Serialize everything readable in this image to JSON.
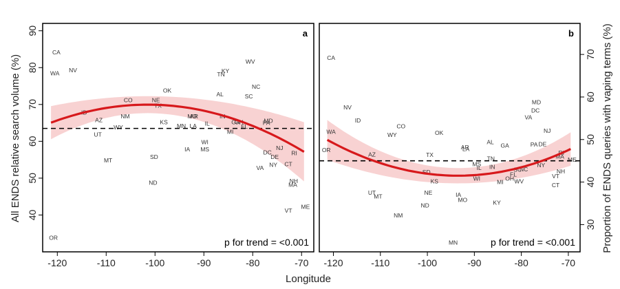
{
  "chart_data": [
    {
      "type": "scatter",
      "panel": "a",
      "xlabel": "Longitude",
      "ylabel": "All ENDS relative search volume (%)",
      "xlim": [
        -123,
        -67.5
      ],
      "ylim": [
        30,
        92
      ],
      "xticks": [
        -120,
        -110,
        -100,
        -90,
        -80,
        -70
      ],
      "yticks": [
        40,
        50,
        60,
        70,
        80,
        90
      ],
      "y_axis_side": "left",
      "reference_y": 63.5,
      "trend_text": "p for trend = <0.001",
      "fit": {
        "a": 69.95,
        "b": -0.0125,
        "x0": -101.5
      },
      "ci": {
        "base": 2.3,
        "k": 0.0056
      },
      "points": [
        {
          "label": "CA",
          "x": -120.2,
          "y": 84.2
        },
        {
          "label": "WA",
          "x": -120.5,
          "y": 78.5
        },
        {
          "label": "NV",
          "x": -116.8,
          "y": 79.3
        },
        {
          "label": "ID",
          "x": -114.5,
          "y": 67.8
        },
        {
          "label": "OR",
          "x": -120.8,
          "y": 33.8
        },
        {
          "label": "AZ",
          "x": -111.5,
          "y": 65.8
        },
        {
          "label": "UT",
          "x": -111.7,
          "y": 61.8
        },
        {
          "label": "MT",
          "x": -109.6,
          "y": 54.8
        },
        {
          "label": "CO",
          "x": -105.5,
          "y": 71.2
        },
        {
          "label": "NM",
          "x": -106.1,
          "y": 66.8
        },
        {
          "label": "WY",
          "x": -107.5,
          "y": 63.8
        },
        {
          "label": "NE",
          "x": -99.8,
          "y": 71.2
        },
        {
          "label": "TX",
          "x": -99.4,
          "y": 69.7
        },
        {
          "label": "OK",
          "x": -97.5,
          "y": 73.8
        },
        {
          "label": "KS",
          "x": -98.2,
          "y": 65.2
        },
        {
          "label": "SD",
          "x": -100.2,
          "y": 55.8
        },
        {
          "label": "ND",
          "x": -100.4,
          "y": 48.8
        },
        {
          "label": "MN",
          "x": -94.6,
          "y": 64.2
        },
        {
          "label": "IA",
          "x": -93.4,
          "y": 57.8
        },
        {
          "label": "MO",
          "x": -92.4,
          "y": 66.8
        },
        {
          "label": "AR",
          "x": -92.0,
          "y": 66.8
        },
        {
          "label": "LA",
          "x": -92.2,
          "y": 64.2
        },
        {
          "label": "WI",
          "x": -89.8,
          "y": 59.8
        },
        {
          "label": "MS",
          "x": -89.8,
          "y": 57.8
        },
        {
          "label": "IL",
          "x": -89.3,
          "y": 64.8
        },
        {
          "label": "TN",
          "x": -86.5,
          "y": 78.2
        },
        {
          "label": "KY",
          "x": -85.6,
          "y": 79.1
        },
        {
          "label": "AL",
          "x": -86.7,
          "y": 72.8
        },
        {
          "label": "IN",
          "x": -86.2,
          "y": 66.8
        },
        {
          "label": "WV",
          "x": -80.5,
          "y": 81.6
        },
        {
          "label": "NC",
          "x": -79.3,
          "y": 74.8
        },
        {
          "label": "SC",
          "x": -80.8,
          "y": 72.2
        },
        {
          "label": "GA",
          "x": -83.5,
          "y": 65.2
        },
        {
          "label": "OH",
          "x": -82.8,
          "y": 65.2
        },
        {
          "label": "FL",
          "x": -81.7,
          "y": 64.0
        },
        {
          "label": "MI",
          "x": -84.6,
          "y": 62.6
        },
        {
          "label": "MD",
          "x": -76.8,
          "y": 65.6
        },
        {
          "label": "PA",
          "x": -77.2,
          "y": 65.0
        },
        {
          "label": "NJ",
          "x": -74.5,
          "y": 58.2
        },
        {
          "label": "DC",
          "x": -77.0,
          "y": 57.0
        },
        {
          "label": "DE",
          "x": -75.5,
          "y": 55.8
        },
        {
          "label": "RI",
          "x": -71.5,
          "y": 56.8
        },
        {
          "label": "CT",
          "x": -72.7,
          "y": 53.8
        },
        {
          "label": "NY",
          "x": -75.8,
          "y": 53.6
        },
        {
          "label": "VA",
          "x": -78.5,
          "y": 52.8
        },
        {
          "label": "NH",
          "x": -71.6,
          "y": 49.2
        },
        {
          "label": "MA",
          "x": -71.8,
          "y": 48.2
        },
        {
          "label": "VT",
          "x": -72.7,
          "y": 41.2
        },
        {
          "label": "ME",
          "x": -69.2,
          "y": 42.2
        }
      ]
    },
    {
      "type": "scatter",
      "panel": "b",
      "xlabel": "Longitude",
      "ylabel": "Proportion of ENDS queries with vaping terms (%)",
      "xlim": [
        -123,
        -67.5
      ],
      "ylim": [
        23.6,
        77.3
      ],
      "xticks": [
        -120,
        -110,
        -100,
        -90,
        -80,
        -70
      ],
      "yticks": [
        30,
        40,
        50,
        60,
        70
      ],
      "y_axis_side": "right",
      "reference_y": 45,
      "trend_text": "p for trend = <0.001",
      "fit": {
        "a": 41.5,
        "b": 0.0109,
        "x0": -93.5
      },
      "ci": {
        "base": 1.8,
        "k": 0.0037
      },
      "points": [
        {
          "label": "CA",
          "x": -120.5,
          "y": 69.2
        },
        {
          "label": "NV",
          "x": -117.0,
          "y": 57.6
        },
        {
          "label": "ID",
          "x": -114.8,
          "y": 54.5
        },
        {
          "label": "WA",
          "x": -120.5,
          "y": 51.8
        },
        {
          "label": "OR",
          "x": -121.5,
          "y": 47.5
        },
        {
          "label": "AZ",
          "x": -111.8,
          "y": 46.5
        },
        {
          "label": "UT",
          "x": -111.8,
          "y": 37.5
        },
        {
          "label": "MT",
          "x": -110.5,
          "y": 36.6
        },
        {
          "label": "NM",
          "x": -106.2,
          "y": 32.2
        },
        {
          "label": "CO",
          "x": -105.6,
          "y": 53.1
        },
        {
          "label": "WY",
          "x": -107.5,
          "y": 51.1
        },
        {
          "label": "OK",
          "x": -97.5,
          "y": 51.6
        },
        {
          "label": "TX",
          "x": -99.5,
          "y": 46.4
        },
        {
          "label": "SD",
          "x": -100.2,
          "y": 42.4
        },
        {
          "label": "KS",
          "x": -98.5,
          "y": 40.2
        },
        {
          "label": "NE",
          "x": -99.8,
          "y": 37.5
        },
        {
          "label": "ND",
          "x": -100.5,
          "y": 34.5
        },
        {
          "label": "MN",
          "x": -94.5,
          "y": 25.8
        },
        {
          "label": "IA",
          "x": -93.4,
          "y": 37.0
        },
        {
          "label": "MO",
          "x": -92.5,
          "y": 35.8
        },
        {
          "label": "LA",
          "x": -91.8,
          "y": 47.8
        },
        {
          "label": "AR",
          "x": -92.0,
          "y": 48.2
        },
        {
          "label": "MS",
          "x": -89.5,
          "y": 44.2
        },
        {
          "label": "IL",
          "x": -89.0,
          "y": 43.3
        },
        {
          "label": "WI",
          "x": -89.5,
          "y": 40.8
        },
        {
          "label": "TN",
          "x": -86.5,
          "y": 45.5
        },
        {
          "label": "AL",
          "x": -86.6,
          "y": 49.4
        },
        {
          "label": "IN",
          "x": -86.2,
          "y": 43.6
        },
        {
          "label": "KY",
          "x": -85.2,
          "y": 35.2
        },
        {
          "label": "GA",
          "x": -83.5,
          "y": 48.6
        },
        {
          "label": "MI",
          "x": -84.5,
          "y": 40.0
        },
        {
          "label": "OH",
          "x": -82.5,
          "y": 40.8
        },
        {
          "label": "FL",
          "x": -81.7,
          "y": 41.8
        },
        {
          "label": "WV",
          "x": -80.5,
          "y": 40.2
        },
        {
          "label": "SC",
          "x": -80.8,
          "y": 42.9
        },
        {
          "label": "NC",
          "x": -79.5,
          "y": 43.0
        },
        {
          "label": "MD",
          "x": -76.8,
          "y": 58.8
        },
        {
          "label": "DC",
          "x": -77.0,
          "y": 56.8
        },
        {
          "label": "VA",
          "x": -78.5,
          "y": 55.2
        },
        {
          "label": "NJ",
          "x": -74.5,
          "y": 52.1
        },
        {
          "label": "PA",
          "x": -77.3,
          "y": 48.8
        },
        {
          "label": "DE",
          "x": -75.5,
          "y": 48.9
        },
        {
          "label": "NY",
          "x": -75.8,
          "y": 44.0
        },
        {
          "label": "RI",
          "x": -71.5,
          "y": 46.9
        },
        {
          "label": "MA",
          "x": -71.8,
          "y": 46.0
        },
        {
          "label": "ME",
          "x": -69.2,
          "y": 45.3
        },
        {
          "label": "NH",
          "x": -71.6,
          "y": 42.5
        },
        {
          "label": "VT",
          "x": -72.7,
          "y": 41.4
        },
        {
          "label": "CT",
          "x": -72.7,
          "y": 39.3
        }
      ]
    }
  ]
}
